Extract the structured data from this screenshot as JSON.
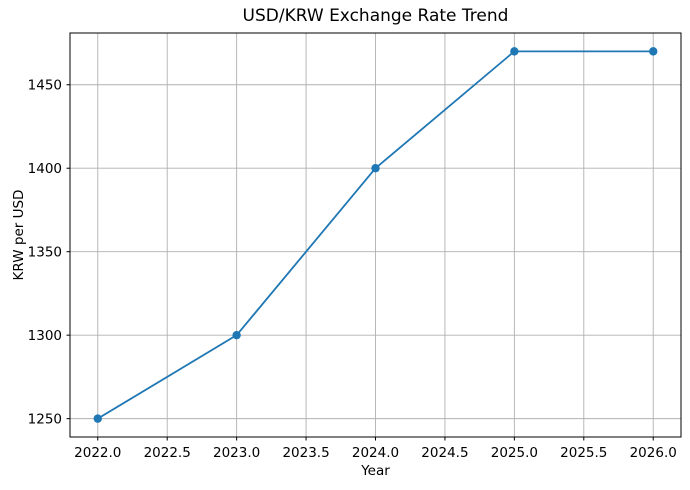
{
  "chart_data": {
    "type": "line",
    "title": "USD/KRW Exchange Rate Trend",
    "xlabel": "Year",
    "ylabel": "KRW per USD",
    "x": [
      2022,
      2023,
      2024,
      2025,
      2026
    ],
    "y": [
      1250,
      1300,
      1400,
      1470,
      1470
    ],
    "xlim": [
      2021.8,
      2026.2
    ],
    "ylim": [
      1239,
      1481
    ],
    "xticks": {
      "values": [
        2022.0,
        2022.5,
        2023.0,
        2023.5,
        2024.0,
        2024.5,
        2025.0,
        2025.5,
        2026.0
      ],
      "labels": [
        "2022.0",
        "2022.5",
        "2023.0",
        "2023.5",
        "2024.0",
        "2024.5",
        "2025.0",
        "2025.5",
        "2026.0"
      ]
    },
    "yticks": {
      "values": [
        1250,
        1300,
        1350,
        1400,
        1450
      ],
      "labels": [
        "1250",
        "1300",
        "1350",
        "1400",
        "1450"
      ]
    },
    "grid": true,
    "legend": null,
    "marker": "o",
    "colors": {
      "line": "#1f77b4",
      "marker": "#1f77b4",
      "grid": "#b0b0b0",
      "axes_frame": "#000000",
      "text": "#000000",
      "background": "#ffffff"
    }
  }
}
